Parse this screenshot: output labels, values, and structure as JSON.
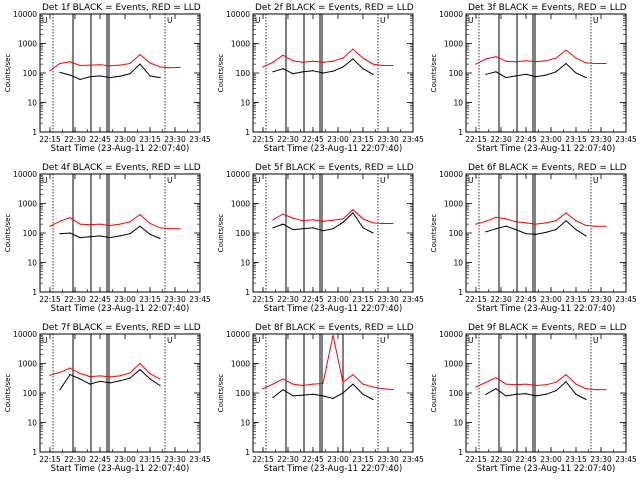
{
  "chart_data": {
    "type": "line",
    "xlabel": "Start Time (23-Aug-11 22:07:40)",
    "ylabel": "Counts/sec",
    "yscale": "log",
    "ylim": [
      1,
      10000
    ],
    "xlim": [
      22.15,
      23.75
    ],
    "x_tick_labels": [
      "22:15",
      "22:30",
      "22:45",
      "23:00",
      "23:15",
      "23:30",
      "23:45"
    ],
    "y_tick_labels": [
      "1",
      "10",
      "100",
      "1000",
      "10000"
    ],
    "colors": {
      "events": "#000000",
      "lld": "#ff0000"
    },
    "marker": "U",
    "x_hours": [
      22.15,
      22.25,
      22.35,
      22.45,
      22.55,
      22.65,
      22.75,
      22.85,
      22.95,
      23.05,
      23.15,
      23.25,
      23.35,
      23.45,
      23.55
    ],
    "dotted_lines_hours": [
      22.28,
      23.4
    ],
    "panels": [
      {
        "title": "Det 1f BLACK = Events, RED = LLD",
        "events": [
          null,
          null,
          105,
          85,
          60,
          75,
          80,
          70,
          78,
          95,
          200,
          80,
          70,
          null,
          null
        ],
        "lld": [
          null,
          120,
          210,
          240,
          180,
          185,
          190,
          175,
          185,
          210,
          420,
          220,
          160,
          150,
          155
        ],
        "solid_lines_hours": [
          22.48,
          22.66,
          22.82,
          22.84
        ]
      },
      {
        "title": "Det 2f BLACK = Events, RED = LLD",
        "events": [
          null,
          null,
          110,
          140,
          95,
          110,
          120,
          100,
          115,
          160,
          300,
          140,
          90,
          null,
          null
        ],
        "lld": [
          null,
          160,
          230,
          400,
          260,
          230,
          250,
          230,
          250,
          320,
          650,
          320,
          200,
          180,
          180
        ],
        "solid_lines_hours": [
          22.48,
          22.66,
          22.82,
          22.84
        ]
      },
      {
        "title": "Det 3f BLACK = Events, RED = LLD",
        "events": [
          null,
          null,
          90,
          110,
          70,
          80,
          90,
          75,
          85,
          110,
          210,
          100,
          70,
          null,
          null
        ],
        "lld": [
          null,
          200,
          300,
          360,
          250,
          240,
          260,
          240,
          260,
          320,
          600,
          320,
          220,
          210,
          210
        ],
        "solid_lines_hours": [
          22.48,
          22.66,
          22.82,
          22.84
        ]
      },
      {
        "title": "Det 4f BLACK = Events, RED = LLD",
        "events": [
          null,
          null,
          95,
          100,
          70,
          75,
          80,
          70,
          80,
          95,
          170,
          90,
          65,
          null,
          null
        ],
        "lld": [
          null,
          170,
          250,
          330,
          200,
          190,
          200,
          180,
          200,
          240,
          420,
          210,
          150,
          140,
          140
        ],
        "solid_lines_hours": [
          22.48,
          22.66,
          22.82,
          22.84
        ]
      },
      {
        "title": "Det 5f BLACK = Events, RED = LLD",
        "events": [
          null,
          null,
          150,
          200,
          130,
          140,
          150,
          120,
          140,
          230,
          480,
          150,
          100,
          null,
          null
        ],
        "lld": [
          null,
          null,
          280,
          440,
          320,
          260,
          280,
          250,
          270,
          300,
          620,
          300,
          220,
          210,
          210
        ],
        "solid_lines_hours": [
          22.48,
          22.66,
          22.82,
          22.84
        ]
      },
      {
        "title": "Det 6f BLACK = Events, RED = LLD",
        "events": [
          null,
          null,
          110,
          140,
          170,
          130,
          95,
          90,
          105,
          130,
          260,
          130,
          80,
          null,
          null
        ],
        "lld": [
          null,
          200,
          250,
          340,
          300,
          240,
          220,
          200,
          220,
          260,
          480,
          260,
          180,
          170,
          170
        ],
        "solid_lines_hours": [
          22.48,
          22.66,
          22.82,
          22.84
        ]
      },
      {
        "title": "Det 7f BLACK = Events, RED = LLD",
        "events": [
          null,
          null,
          130,
          420,
          300,
          200,
          250,
          220,
          260,
          320,
          620,
          300,
          180,
          null,
          null
        ],
        "lld": [
          null,
          400,
          500,
          700,
          460,
          360,
          380,
          350,
          380,
          480,
          1000,
          450,
          300,
          null,
          null
        ],
        "solid_lines_hours": [
          22.48,
          22.66,
          22.82,
          22.84
        ]
      },
      {
        "title": "Det 8f BLACK = Events, RED = LLD",
        "events": [
          null,
          null,
          70,
          130,
          80,
          85,
          90,
          80,
          65,
          100,
          200,
          90,
          60,
          null,
          null
        ],
        "lld": [
          null,
          140,
          200,
          300,
          200,
          180,
          200,
          210,
          9000,
          230,
          420,
          200,
          160,
          140,
          130
        ],
        "solid_lines_hours": [
          22.48,
          22.66,
          22.82,
          22.84,
          23.05
        ]
      },
      {
        "title": "Det 9f BLACK = Events, RED = LLD",
        "events": [
          null,
          null,
          90,
          140,
          80,
          90,
          95,
          80,
          90,
          120,
          240,
          90,
          60,
          null,
          null
        ],
        "lld": [
          null,
          160,
          230,
          330,
          200,
          190,
          200,
          180,
          190,
          230,
          420,
          200,
          140,
          130,
          130
        ],
        "solid_lines_hours": [
          22.48,
          22.66,
          22.82,
          22.84
        ]
      }
    ]
  }
}
